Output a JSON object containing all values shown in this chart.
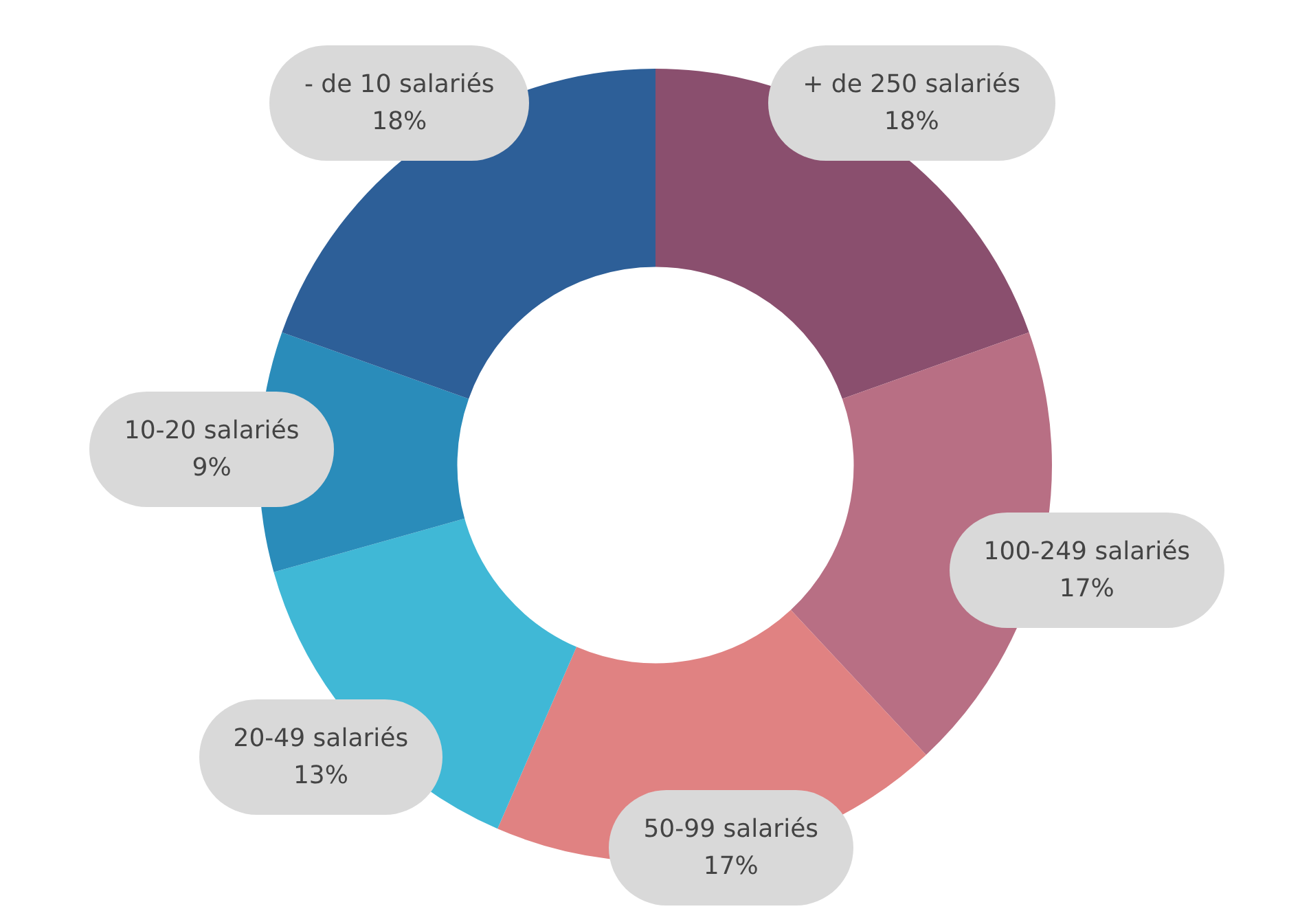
{
  "chart_data": {
    "type": "donut",
    "categories": [
      "+ de 250 salariés",
      "100-249 salariés",
      "50-99 salariés",
      "20-49 salariés",
      "10-20 salariés",
      "- de 10 salariés"
    ],
    "values": [
      18,
      17,
      17,
      13,
      9,
      18
    ],
    "value_labels": [
      "18%",
      "17%",
      "17%",
      "13%",
      "9%",
      "18%"
    ],
    "colors": [
      "#8a4f6e",
      "#b86f84",
      "#e08282",
      "#40b8d6",
      "#2a8cba",
      "#2d5f98"
    ],
    "legend": false
  }
}
